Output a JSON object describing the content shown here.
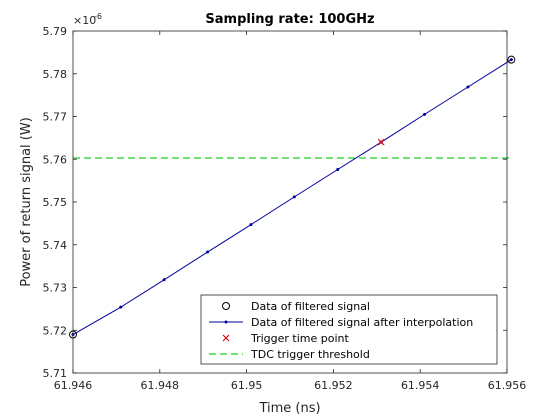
{
  "chart_data": {
    "type": "line",
    "title": "Sampling rate: 100GHz",
    "xlabel": "Time (ns)",
    "ylabel": "Power of return signal (W)",
    "y_exponent_label": "×10",
    "y_exponent_power": "-6",
    "xlim": [
      61.946,
      61.956
    ],
    "ylim": [
      5.71,
      5.79
    ],
    "x_ticks": [
      61.946,
      61.948,
      61.95,
      61.952,
      61.954,
      61.956
    ],
    "x_tick_labels": [
      "61.946",
      "61.948",
      "61.95",
      "61.952",
      "61.954",
      "61.956"
    ],
    "y_ticks": [
      5.71,
      5.72,
      5.73,
      5.74,
      5.75,
      5.76,
      5.77,
      5.78,
      5.79
    ],
    "y_tick_labels": [
      "5.71",
      "5.72",
      "5.73",
      "5.74",
      "5.75",
      "5.76",
      "5.77",
      "5.78",
      "5.79"
    ],
    "grid": false,
    "legend_position": "bottom-right",
    "series": [
      {
        "name": "Data of filtered signal",
        "style": "circle-marker",
        "color": "#000000",
        "x": [
          61.946,
          61.9561
        ],
        "y": [
          5.719,
          5.7833
        ]
      },
      {
        "name": "Data of filtered signal after interpolation",
        "style": "line-dot",
        "color": "#0000a0",
        "x": [
          61.946,
          61.9471,
          61.9481,
          61.9491,
          61.9501,
          61.9511,
          61.9521,
          61.9531,
          61.9541,
          61.9551,
          61.9561
        ],
        "y": [
          5.719,
          5.7254,
          5.7318,
          5.7383,
          5.7447,
          5.7512,
          5.7576,
          5.764,
          5.7705,
          5.7769,
          5.7833
        ]
      },
      {
        "name": "Trigger time point",
        "style": "x-marker",
        "color": "#e00000",
        "x": [
          61.9531
        ],
        "y": [
          5.764
        ]
      },
      {
        "name": "TDC trigger threshold",
        "style": "dashed-line",
        "color": "#22cc22",
        "x": [
          61.946,
          61.9561
        ],
        "y": [
          5.7603,
          5.7603
        ]
      }
    ]
  }
}
